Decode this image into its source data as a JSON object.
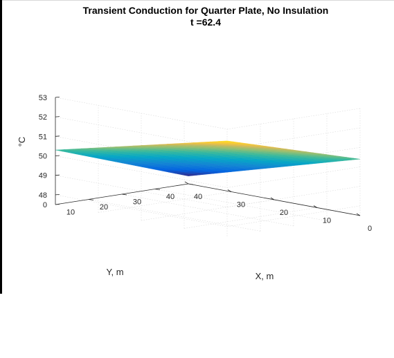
{
  "chart_data": {
    "type": "surface",
    "title": "Transient Conduction for Quarter Plate, No Insulation",
    "subtitle": "t =62.4",
    "xlabel": "X, m",
    "ylabel": "Y, m",
    "zlabel": "°C",
    "xlim": [
      0,
      40
    ],
    "ylim": [
      0,
      40
    ],
    "zlim": [
      47.5,
      53
    ],
    "xticks": [
      "0",
      "10",
      "20",
      "30",
      "40"
    ],
    "yticks": [
      "10",
      "20",
      "30",
      "40"
    ],
    "zticks": [
      "0",
      "48",
      "49",
      "50",
      "51",
      "52",
      "53"
    ],
    "grid": true,
    "colormap": "parula",
    "corner_values": [
      {
        "x": 0,
        "y": 0,
        "z": 52.4
      },
      {
        "x": 40,
        "y": 0,
        "z": 50.3
      },
      {
        "x": 0,
        "y": 40,
        "z": 50.4
      },
      {
        "x": 40,
        "y": 40,
        "z": 47.9
      }
    ]
  }
}
